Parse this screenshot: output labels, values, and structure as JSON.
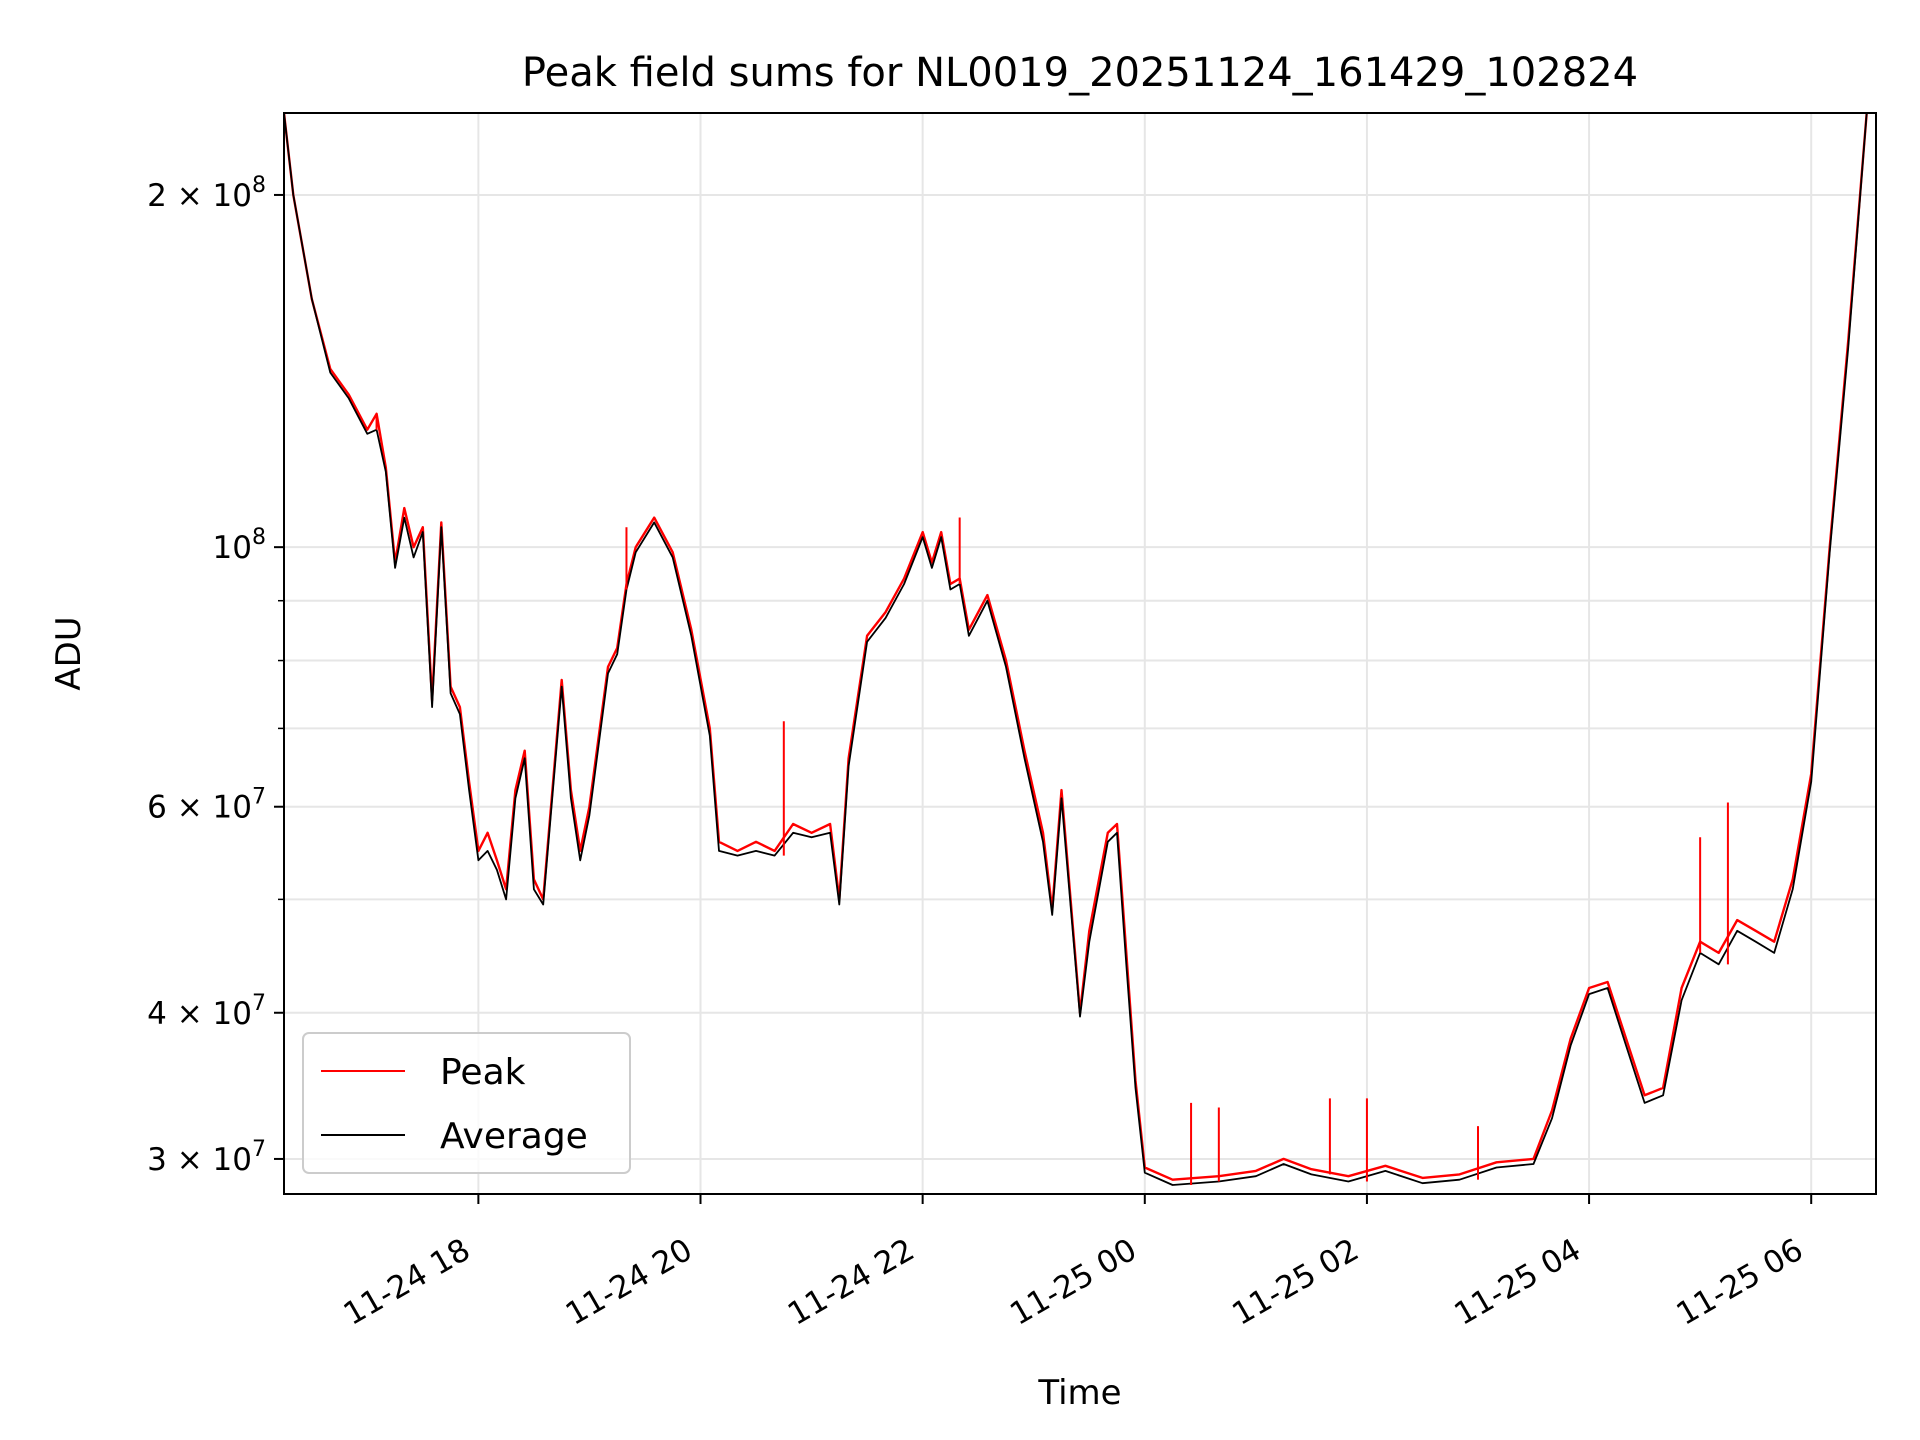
{
  "chart_data": {
    "type": "line",
    "title": "Peak field sums for NL0019_20251124_161429_102824",
    "xlabel": "Time",
    "ylabel": "ADU",
    "x_unit": "datetime",
    "xlim": [
      "2025-11-24 16:15",
      "2025-11-25 06:35"
    ],
    "ylim": [
      28000000,
      235000000
    ],
    "y_scale": "log",
    "grid": true,
    "legend_position": "lower-left",
    "x_ticks": [
      {
        "value": "2025-11-24 18:00",
        "label": "11-24 18"
      },
      {
        "value": "2025-11-24 20:00",
        "label": "11-24 20"
      },
      {
        "value": "2025-11-24 22:00",
        "label": "11-24 22"
      },
      {
        "value": "2025-11-25 00:00",
        "label": "11-25 00"
      },
      {
        "value": "2025-11-25 02:00",
        "label": "11-25 02"
      },
      {
        "value": "2025-11-25 04:00",
        "label": "11-25 04"
      },
      {
        "value": "2025-11-25 06:00",
        "label": "11-25 06"
      }
    ],
    "y_ticks": [
      {
        "value": 30000000,
        "coef": "3 × 10",
        "exp": "7"
      },
      {
        "value": 40000000,
        "coef": "4 × 10",
        "exp": "7"
      },
      {
        "value": 60000000,
        "coef": "6 × 10",
        "exp": "7"
      },
      {
        "value": 100000000,
        "coef": "10",
        "exp": "8"
      },
      {
        "value": 200000000,
        "coef": "2 × 10",
        "exp": "8"
      }
    ],
    "y_minor_ticks": [
      50000000,
      70000000,
      80000000,
      90000000
    ],
    "series": [
      {
        "name": "Peak",
        "color": "#ff0000",
        "points": [
          [
            "2025-11-24 16:15",
            235000000
          ],
          [
            "2025-11-24 16:20",
            200000000
          ],
          [
            "2025-11-24 16:30",
            163000000
          ],
          [
            "2025-11-24 16:40",
            142000000
          ],
          [
            "2025-11-24 16:50",
            135000000
          ],
          [
            "2025-11-24 17:00",
            126000000
          ],
          [
            "2025-11-24 17:05",
            130000000
          ],
          [
            "2025-11-24 17:10",
            117000000
          ],
          [
            "2025-11-24 17:15",
            97000000
          ],
          [
            "2025-11-24 17:20",
            108000000
          ],
          [
            "2025-11-24 17:25",
            100000000
          ],
          [
            "2025-11-24 17:30",
            104000000
          ],
          [
            "2025-11-24 17:35",
            74000000
          ],
          [
            "2025-11-24 17:40",
            105000000
          ],
          [
            "2025-11-24 17:45",
            76000000
          ],
          [
            "2025-11-24 17:50",
            73000000
          ],
          [
            "2025-11-24 17:55",
            63000000
          ],
          [
            "2025-11-24 18:00",
            55000000
          ],
          [
            "2025-11-24 18:05",
            57000000
          ],
          [
            "2025-11-24 18:10",
            54000000
          ],
          [
            "2025-11-24 18:15",
            51000000
          ],
          [
            "2025-11-24 18:20",
            62000000
          ],
          [
            "2025-11-24 18:25",
            67000000
          ],
          [
            "2025-11-24 18:30",
            52000000
          ],
          [
            "2025-11-24 18:35",
            50000000
          ],
          [
            "2025-11-24 18:45",
            77000000
          ],
          [
            "2025-11-24 18:50",
            62000000
          ],
          [
            "2025-11-24 18:55",
            55000000
          ],
          [
            "2025-11-24 19:00",
            60000000
          ],
          [
            "2025-11-24 19:10",
            79000000
          ],
          [
            "2025-11-24 19:15",
            82000000
          ],
          [
            "2025-11-24 19:20",
            93000000
          ],
          [
            "2025-11-24 19:25",
            100000000
          ],
          [
            "2025-11-24 19:35",
            106000000
          ],
          [
            "2025-11-24 19:45",
            99000000
          ],
          [
            "2025-11-24 19:55",
            85000000
          ],
          [
            "2025-11-24 20:05",
            70000000
          ],
          [
            "2025-11-24 20:10",
            56000000
          ],
          [
            "2025-11-24 20:20",
            55000000
          ],
          [
            "2025-11-24 20:30",
            56000000
          ],
          [
            "2025-11-24 20:40",
            55000000
          ],
          [
            "2025-11-24 20:50",
            58000000
          ],
          [
            "2025-11-24 21:00",
            57000000
          ],
          [
            "2025-11-24 21:10",
            58000000
          ],
          [
            "2025-11-24 21:15",
            50000000
          ],
          [
            "2025-11-24 21:20",
            66000000
          ],
          [
            "2025-11-24 21:30",
            84000000
          ],
          [
            "2025-11-24 21:40",
            88000000
          ],
          [
            "2025-11-24 21:50",
            94000000
          ],
          [
            "2025-11-24 22:00",
            103000000
          ],
          [
            "2025-11-24 22:05",
            97000000
          ],
          [
            "2025-11-24 22:10",
            103000000
          ],
          [
            "2025-11-24 22:15",
            93000000
          ],
          [
            "2025-11-24 22:20",
            94000000
          ],
          [
            "2025-11-24 22:25",
            85000000
          ],
          [
            "2025-11-24 22:35",
            91000000
          ],
          [
            "2025-11-24 22:45",
            80000000
          ],
          [
            "2025-11-24 22:55",
            67000000
          ],
          [
            "2025-11-24 23:05",
            57000000
          ],
          [
            "2025-11-24 23:10",
            49000000
          ],
          [
            "2025-11-24 23:15",
            62000000
          ],
          [
            "2025-11-24 23:25",
            40000000
          ],
          [
            "2025-11-24 23:30",
            47000000
          ],
          [
            "2025-11-24 23:40",
            57000000
          ],
          [
            "2025-11-24 23:45",
            58000000
          ],
          [
            "2025-11-24 23:50",
            45000000
          ],
          [
            "2025-11-24 23:55",
            35000000
          ],
          [
            "2025-11-25 00:00",
            29500000
          ],
          [
            "2025-11-25 00:15",
            28800000
          ],
          [
            "2025-11-25 00:40",
            29000000
          ],
          [
            "2025-11-25 01:00",
            29300000
          ],
          [
            "2025-11-25 01:15",
            30000000
          ],
          [
            "2025-11-25 01:30",
            29400000
          ],
          [
            "2025-11-25 01:50",
            29000000
          ],
          [
            "2025-11-25 02:10",
            29600000
          ],
          [
            "2025-11-25 02:30",
            28900000
          ],
          [
            "2025-11-25 02:50",
            29100000
          ],
          [
            "2025-11-25 03:10",
            29800000
          ],
          [
            "2025-11-25 03:30",
            30000000
          ],
          [
            "2025-11-25 03:40",
            33000000
          ],
          [
            "2025-11-25 03:50",
            38000000
          ],
          [
            "2025-11-25 04:00",
            42000000
          ],
          [
            "2025-11-25 04:10",
            42500000
          ],
          [
            "2025-11-25 04:20",
            38000000
          ],
          [
            "2025-11-25 04:30",
            34000000
          ],
          [
            "2025-11-25 04:40",
            34500000
          ],
          [
            "2025-11-25 04:50",
            42000000
          ],
          [
            "2025-11-25 05:00",
            46000000
          ],
          [
            "2025-11-25 05:10",
            45000000
          ],
          [
            "2025-11-25 05:20",
            48000000
          ],
          [
            "2025-11-25 05:30",
            47000000
          ],
          [
            "2025-11-25 05:40",
            46000000
          ],
          [
            "2025-11-25 05:50",
            52000000
          ],
          [
            "2025-11-25 06:00",
            64000000
          ],
          [
            "2025-11-25 06:10",
            100000000
          ],
          [
            "2025-11-25 06:20",
            150000000
          ],
          [
            "2025-11-25 06:30",
            235000000
          ]
        ]
      },
      {
        "name": "Average",
        "color": "#000000",
        "points": [
          [
            "2025-11-24 16:15",
            235000000
          ],
          [
            "2025-11-24 16:20",
            200000000
          ],
          [
            "2025-11-24 16:30",
            163000000
          ],
          [
            "2025-11-24 16:40",
            141000000
          ],
          [
            "2025-11-24 16:50",
            134000000
          ],
          [
            "2025-11-24 17:00",
            125000000
          ],
          [
            "2025-11-24 17:05",
            126000000
          ],
          [
            "2025-11-24 17:10",
            116000000
          ],
          [
            "2025-11-24 17:15",
            96000000
          ],
          [
            "2025-11-24 17:20",
            106000000
          ],
          [
            "2025-11-24 17:25",
            98000000
          ],
          [
            "2025-11-24 17:30",
            103000000
          ],
          [
            "2025-11-24 17:35",
            73000000
          ],
          [
            "2025-11-24 17:40",
            104000000
          ],
          [
            "2025-11-24 17:45",
            75000000
          ],
          [
            "2025-11-24 17:50",
            72000000
          ],
          [
            "2025-11-24 17:55",
            62000000
          ],
          [
            "2025-11-24 18:00",
            54000000
          ],
          [
            "2025-11-24 18:05",
            55000000
          ],
          [
            "2025-11-24 18:10",
            53000000
          ],
          [
            "2025-11-24 18:15",
            50000000
          ],
          [
            "2025-11-24 18:20",
            61000000
          ],
          [
            "2025-11-24 18:25",
            66000000
          ],
          [
            "2025-11-24 18:30",
            51000000
          ],
          [
            "2025-11-24 18:35",
            49500000
          ],
          [
            "2025-11-24 18:45",
            76000000
          ],
          [
            "2025-11-24 18:50",
            61000000
          ],
          [
            "2025-11-24 18:55",
            54000000
          ],
          [
            "2025-11-24 19:00",
            59000000
          ],
          [
            "2025-11-24 19:10",
            78000000
          ],
          [
            "2025-11-24 19:15",
            81000000
          ],
          [
            "2025-11-24 19:20",
            92000000
          ],
          [
            "2025-11-24 19:25",
            99000000
          ],
          [
            "2025-11-24 19:35",
            105000000
          ],
          [
            "2025-11-24 19:45",
            98000000
          ],
          [
            "2025-11-24 19:55",
            84000000
          ],
          [
            "2025-11-24 20:05",
            69000000
          ],
          [
            "2025-11-24 20:10",
            55000000
          ],
          [
            "2025-11-24 20:20",
            54500000
          ],
          [
            "2025-11-24 20:30",
            55000000
          ],
          [
            "2025-11-24 20:40",
            54500000
          ],
          [
            "2025-11-24 20:50",
            57000000
          ],
          [
            "2025-11-24 21:00",
            56500000
          ],
          [
            "2025-11-24 21:10",
            57000000
          ],
          [
            "2025-11-24 21:15",
            49500000
          ],
          [
            "2025-11-24 21:20",
            65000000
          ],
          [
            "2025-11-24 21:30",
            83000000
          ],
          [
            "2025-11-24 21:40",
            87000000
          ],
          [
            "2025-11-24 21:50",
            93000000
          ],
          [
            "2025-11-24 22:00",
            102000000
          ],
          [
            "2025-11-24 22:05",
            96000000
          ],
          [
            "2025-11-24 22:10",
            102000000
          ],
          [
            "2025-11-24 22:15",
            92000000
          ],
          [
            "2025-11-24 22:20",
            93000000
          ],
          [
            "2025-11-24 22:25",
            84000000
          ],
          [
            "2025-11-24 22:35",
            90000000
          ],
          [
            "2025-11-24 22:45",
            79000000
          ],
          [
            "2025-11-24 22:55",
            66000000
          ],
          [
            "2025-11-24 23:05",
            56000000
          ],
          [
            "2025-11-24 23:10",
            48500000
          ],
          [
            "2025-11-24 23:15",
            61000000
          ],
          [
            "2025-11-24 23:25",
            39700000
          ],
          [
            "2025-11-24 23:30",
            46000000
          ],
          [
            "2025-11-24 23:40",
            56000000
          ],
          [
            "2025-11-24 23:45",
            57000000
          ],
          [
            "2025-11-24 23:50",
            44000000
          ],
          [
            "2025-11-24 23:55",
            34500000
          ],
          [
            "2025-11-25 00:00",
            29200000
          ],
          [
            "2025-11-25 00:15",
            28500000
          ],
          [
            "2025-11-25 00:40",
            28700000
          ],
          [
            "2025-11-25 01:00",
            29000000
          ],
          [
            "2025-11-25 01:15",
            29700000
          ],
          [
            "2025-11-25 01:30",
            29100000
          ],
          [
            "2025-11-25 01:50",
            28700000
          ],
          [
            "2025-11-25 02:10",
            29300000
          ],
          [
            "2025-11-25 02:30",
            28600000
          ],
          [
            "2025-11-25 02:50",
            28800000
          ],
          [
            "2025-11-25 03:10",
            29500000
          ],
          [
            "2025-11-25 03:30",
            29700000
          ],
          [
            "2025-11-25 03:40",
            32500000
          ],
          [
            "2025-11-25 03:50",
            37500000
          ],
          [
            "2025-11-25 04:00",
            41500000
          ],
          [
            "2025-11-25 04:10",
            42000000
          ],
          [
            "2025-11-25 04:20",
            37500000
          ],
          [
            "2025-11-25 04:30",
            33500000
          ],
          [
            "2025-11-25 04:40",
            34000000
          ],
          [
            "2025-11-25 04:50",
            41000000
          ],
          [
            "2025-11-25 05:00",
            45000000
          ],
          [
            "2025-11-25 05:10",
            44000000
          ],
          [
            "2025-11-25 05:20",
            47000000
          ],
          [
            "2025-11-25 05:30",
            46000000
          ],
          [
            "2025-11-25 05:40",
            45000000
          ],
          [
            "2025-11-25 05:50",
            51000000
          ],
          [
            "2025-11-25 06:00",
            63000000
          ],
          [
            "2025-11-25 06:10",
            99000000
          ],
          [
            "2025-11-25 06:20",
            148000000
          ],
          [
            "2025-11-25 06:30",
            235000000
          ]
        ]
      }
    ],
    "peak_spikes": [
      [
        "2025-11-24 17:05",
        130000000
      ],
      [
        "2025-11-24 19:20",
        104000000
      ],
      [
        "2025-11-24 20:45",
        71000000
      ],
      [
        "2025-11-24 22:20",
        106000000
      ],
      [
        "2025-11-25 00:25",
        33500000
      ],
      [
        "2025-11-25 00:40",
        33200000
      ],
      [
        "2025-11-25 01:40",
        33800000
      ],
      [
        "2025-11-25 02:00",
        33800000
      ],
      [
        "2025-11-25 03:00",
        32000000
      ],
      [
        "2025-11-25 05:00",
        56500000
      ],
      [
        "2025-11-25 05:15",
        60500000
      ]
    ]
  }
}
